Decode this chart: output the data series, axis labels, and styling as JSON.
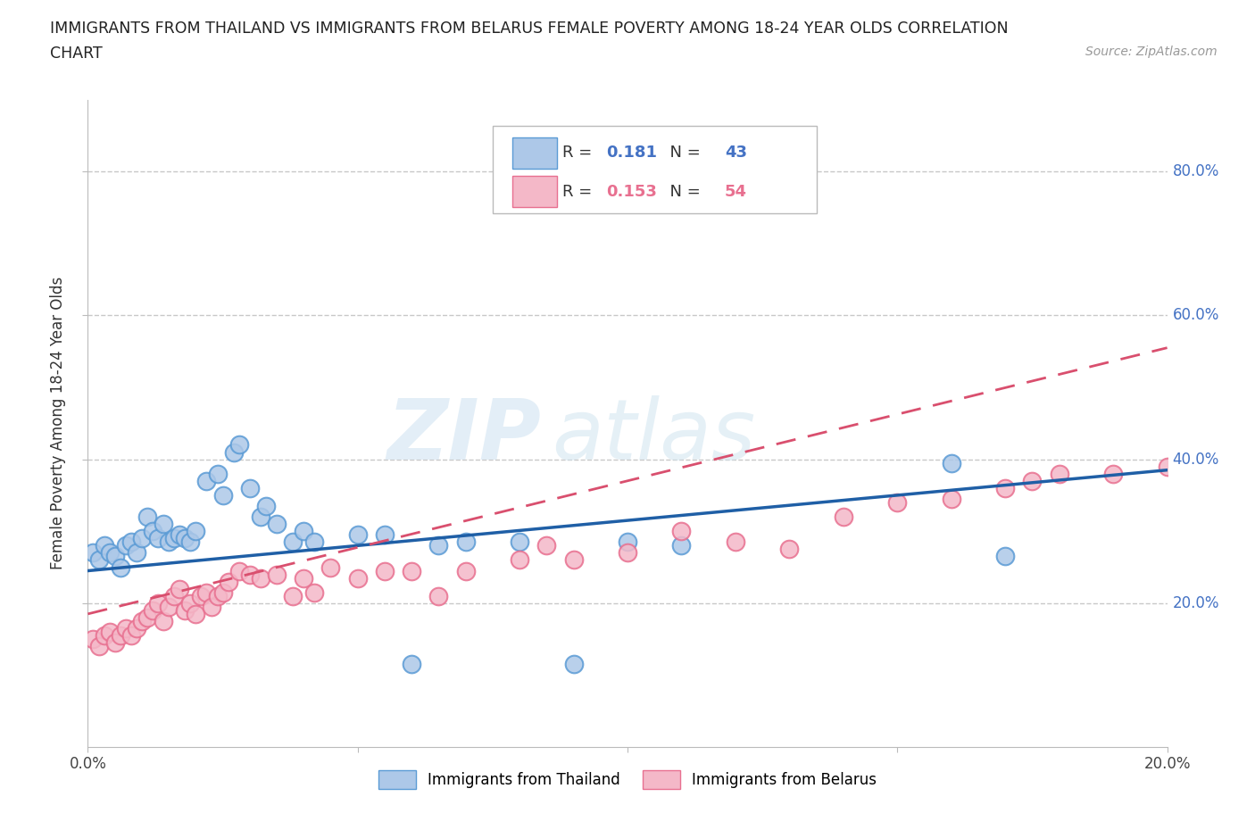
{
  "title_line1": "IMMIGRANTS FROM THAILAND VS IMMIGRANTS FROM BELARUS FEMALE POVERTY AMONG 18-24 YEAR OLDS CORRELATION",
  "title_line2": "CHART",
  "source": "Source: ZipAtlas.com",
  "ylabel": "Female Poverty Among 18-24 Year Olds",
  "xlim": [
    0.0,
    0.2
  ],
  "ylim": [
    0.0,
    0.9
  ],
  "xticks": [
    0.0,
    0.05,
    0.1,
    0.15,
    0.2
  ],
  "yticks": [
    0.2,
    0.4,
    0.6,
    0.8
  ],
  "right_ytick_labels": [
    "20.0%",
    "40.0%",
    "60.0%",
    "80.0%"
  ],
  "thailand_color": "#adc8e8",
  "thailand_edge": "#5b9bd5",
  "thailand_line_color": "#1f5fa6",
  "belarus_color": "#f4b8c8",
  "belarus_edge": "#e87090",
  "belarus_line_color": "#d94f6e",
  "R_thailand": 0.181,
  "N_thailand": 43,
  "R_belarus": 0.153,
  "N_belarus": 54,
  "thailand_intercept": 0.245,
  "thailand_slope": 0.7,
  "belarus_intercept": 0.185,
  "belarus_slope": 1.85,
  "thailand_x": [
    0.001,
    0.002,
    0.003,
    0.004,
    0.005,
    0.006,
    0.007,
    0.008,
    0.009,
    0.01,
    0.011,
    0.012,
    0.013,
    0.014,
    0.015,
    0.016,
    0.017,
    0.018,
    0.019,
    0.02,
    0.022,
    0.024,
    0.025,
    0.027,
    0.028,
    0.03,
    0.032,
    0.033,
    0.035,
    0.038,
    0.04,
    0.042,
    0.05,
    0.055,
    0.06,
    0.065,
    0.07,
    0.08,
    0.09,
    0.1,
    0.11,
    0.16,
    0.17
  ],
  "thailand_y": [
    0.27,
    0.26,
    0.28,
    0.27,
    0.265,
    0.25,
    0.28,
    0.285,
    0.27,
    0.29,
    0.32,
    0.3,
    0.29,
    0.31,
    0.285,
    0.29,
    0.295,
    0.29,
    0.285,
    0.3,
    0.37,
    0.38,
    0.35,
    0.41,
    0.42,
    0.36,
    0.32,
    0.335,
    0.31,
    0.285,
    0.3,
    0.285,
    0.295,
    0.295,
    0.115,
    0.28,
    0.285,
    0.285,
    0.115,
    0.285,
    0.28,
    0.395,
    0.265
  ],
  "belarus_x": [
    0.001,
    0.002,
    0.003,
    0.004,
    0.005,
    0.006,
    0.007,
    0.008,
    0.009,
    0.01,
    0.011,
    0.012,
    0.013,
    0.014,
    0.015,
    0.016,
    0.017,
    0.018,
    0.019,
    0.02,
    0.021,
    0.022,
    0.023,
    0.024,
    0.025,
    0.026,
    0.028,
    0.03,
    0.032,
    0.035,
    0.038,
    0.04,
    0.042,
    0.045,
    0.05,
    0.055,
    0.06,
    0.065,
    0.07,
    0.08,
    0.085,
    0.09,
    0.1,
    0.11,
    0.12,
    0.13,
    0.14,
    0.15,
    0.16,
    0.17,
    0.175,
    0.18,
    0.19,
    0.2
  ],
  "belarus_y": [
    0.15,
    0.14,
    0.155,
    0.16,
    0.145,
    0.155,
    0.165,
    0.155,
    0.165,
    0.175,
    0.18,
    0.19,
    0.2,
    0.175,
    0.195,
    0.21,
    0.22,
    0.19,
    0.2,
    0.185,
    0.21,
    0.215,
    0.195,
    0.21,
    0.215,
    0.23,
    0.245,
    0.24,
    0.235,
    0.24,
    0.21,
    0.235,
    0.215,
    0.25,
    0.235,
    0.245,
    0.245,
    0.21,
    0.245,
    0.26,
    0.28,
    0.26,
    0.27,
    0.3,
    0.285,
    0.275,
    0.32,
    0.34,
    0.345,
    0.36,
    0.37,
    0.38,
    0.38,
    0.39
  ],
  "watermark_zip": "ZIP",
  "watermark_atlas": "atlas",
  "background_color": "#ffffff",
  "grid_color": "#c8c8c8"
}
